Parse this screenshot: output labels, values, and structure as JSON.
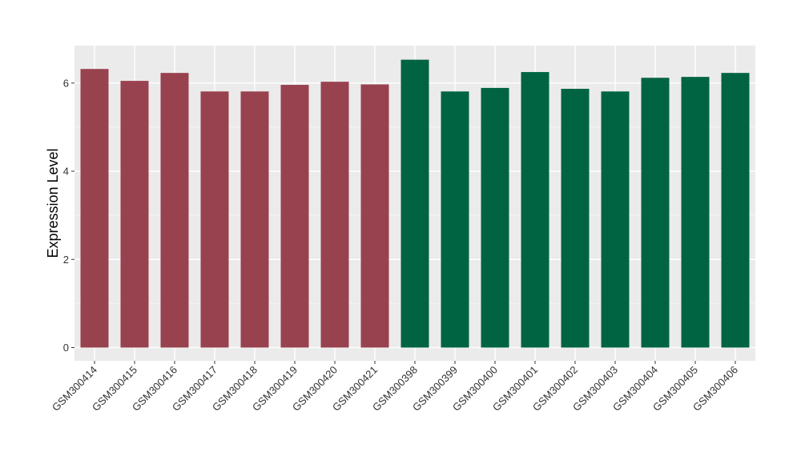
{
  "chart_data": {
    "type": "bar",
    "title": "",
    "xlabel": "",
    "ylabel": "Expression Level",
    "ylim": [
      -0.3,
      6.85
    ],
    "yticks": [
      0,
      2,
      4,
      6
    ],
    "grid": true,
    "legend": "none",
    "panel_background": "#ebebeb",
    "categories": [
      "GSM300414",
      "GSM300415",
      "GSM300416",
      "GSM300417",
      "GSM300418",
      "GSM300419",
      "GSM300420",
      "GSM300421",
      "GSM300398",
      "GSM300399",
      "GSM300400",
      "GSM300401",
      "GSM300402",
      "GSM300403",
      "GSM300404",
      "GSM300405",
      "GSM300406"
    ],
    "values": [
      6.32,
      6.05,
      6.23,
      5.81,
      5.81,
      5.96,
      6.03,
      5.97,
      6.53,
      5.81,
      5.89,
      6.25,
      5.87,
      5.81,
      6.12,
      6.14,
      6.23
    ],
    "group_colors": [
      "#99424f",
      "#99424f",
      "#99424f",
      "#99424f",
      "#99424f",
      "#99424f",
      "#99424f",
      "#99424f",
      "#006443",
      "#006443",
      "#006443",
      "#006443",
      "#006443",
      "#006443",
      "#006443",
      "#006443",
      "#006443"
    ]
  }
}
